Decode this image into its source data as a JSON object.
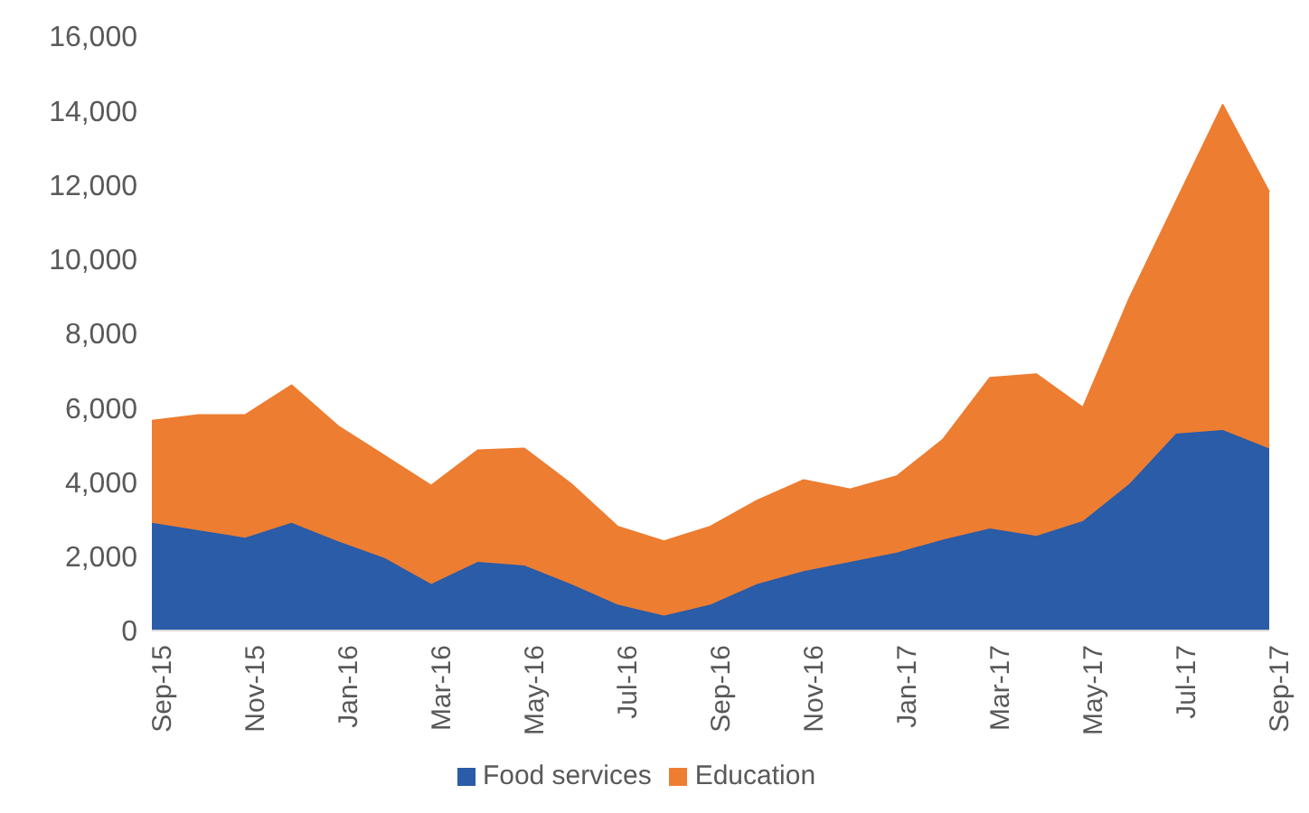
{
  "chart_data": {
    "type": "area",
    "stacked": true,
    "categories": [
      "Sep-15",
      null,
      "Nov-15",
      null,
      "Jan-16",
      null,
      "Mar-16",
      null,
      "May-16",
      null,
      "Jul-16",
      null,
      "Sep-16",
      null,
      "Nov-16",
      null,
      "Jan-17",
      null,
      "Mar-17",
      null,
      "May-17",
      null,
      "Jul-17",
      null,
      "Sep-17"
    ],
    "series": [
      {
        "name": "Food services",
        "color": "#2a5ca8",
        "values": [
          2900,
          2700,
          2500,
          2900,
          2400,
          1950,
          1250,
          1850,
          1750,
          1250,
          700,
          400,
          700,
          1250,
          1600,
          1850,
          2100,
          2450,
          2750,
          2550,
          2950,
          3950,
          5300,
          5400,
          4900
        ]
      },
      {
        "name": "Education",
        "color": "#ed7d31",
        "values": [
          2750,
          3100,
          3300,
          3700,
          3100,
          2750,
          2650,
          3000,
          3150,
          2700,
          2100,
          2000,
          2100,
          2250,
          2450,
          1950,
          2050,
          2700,
          4050,
          4350,
          3050,
          5000,
          6250,
          8750,
          6900
        ]
      }
    ],
    "ylim": [
      0,
      16000
    ],
    "yticks": [
      0,
      {
        "value": 2000,
        "label": "2,000"
      },
      {
        "value": 4000,
        "label": "4,000"
      },
      {
        "value": 6000,
        "label": "6,000"
      },
      {
        "value": 8000,
        "label": "8,000"
      },
      {
        "value": 10000,
        "label": "10,000"
      },
      {
        "value": 12000,
        "label": "12,000"
      },
      {
        "value": 14000,
        "label": "14,000"
      },
      {
        "value": 16000,
        "label": "16,000"
      }
    ],
    "grid": false,
    "legend": "bottom"
  }
}
